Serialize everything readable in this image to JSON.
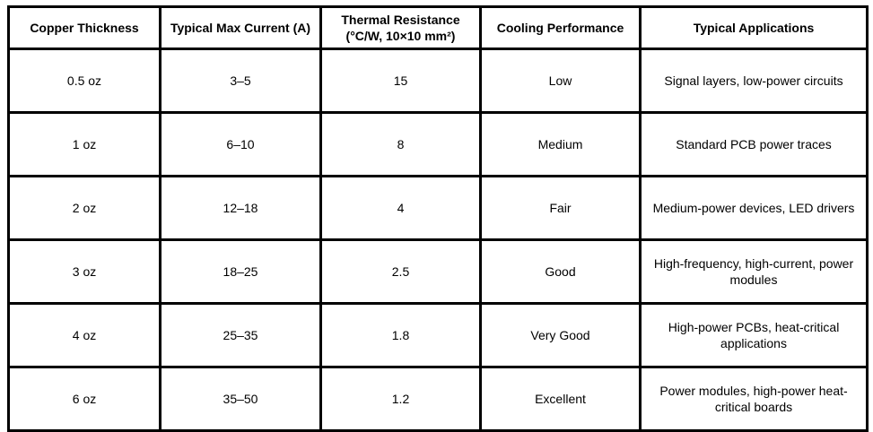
{
  "colors": {
    "background": "#ffffff",
    "border": "#000000",
    "text": "#000000"
  },
  "table": {
    "columns": [
      "Copper Thickness",
      "Typical Max Current (A)",
      "Thermal Resistance (°C/W, 10×10 mm²)",
      "Cooling Performance",
      "Typical Applications"
    ],
    "rows": [
      [
        "0.5 oz",
        "3–5",
        "15",
        "Low",
        "Signal layers, low-power circuits"
      ],
      [
        "1 oz",
        "6–10",
        "8",
        "Medium",
        "Standard PCB power traces"
      ],
      [
        "2 oz",
        "12–18",
        "4",
        "Fair",
        "Medium-power devices, LED drivers"
      ],
      [
        "3 oz",
        "18–25",
        "2.5",
        "Good",
        "High-frequency, high-current, power modules"
      ],
      [
        "4 oz",
        "25–35",
        "1.8",
        "Very Good",
        "High-power PCBs, heat-critical applications"
      ],
      [
        "6 oz",
        "35–50",
        "1.2",
        "Excellent",
        "Power modules, high-power heat-critical boards"
      ]
    ]
  },
  "chart_data": {
    "type": "table",
    "columns": [
      "Copper Thickness",
      "Typical Max Current (A)",
      "Thermal Resistance (°C/W, 10×10 mm²)",
      "Cooling Performance",
      "Typical Applications"
    ],
    "rows": [
      {
        "copper_thickness": "0.5 oz",
        "typical_max_current_a": "3–5",
        "thermal_resistance_c_per_w": 15,
        "cooling_performance": "Low",
        "typical_applications": "Signal layers, low-power circuits"
      },
      {
        "copper_thickness": "1 oz",
        "typical_max_current_a": "6–10",
        "thermal_resistance_c_per_w": 8,
        "cooling_performance": "Medium",
        "typical_applications": "Standard PCB power traces"
      },
      {
        "copper_thickness": "2 oz",
        "typical_max_current_a": "12–18",
        "thermal_resistance_c_per_w": 4,
        "cooling_performance": "Fair",
        "typical_applications": "Medium-power devices, LED drivers"
      },
      {
        "copper_thickness": "3 oz",
        "typical_max_current_a": "18–25",
        "thermal_resistance_c_per_w": 2.5,
        "cooling_performance": "Good",
        "typical_applications": "High-frequency, high-current, power modules"
      },
      {
        "copper_thickness": "4 oz",
        "typical_max_current_a": "25–35",
        "thermal_resistance_c_per_w": 1.8,
        "cooling_performance": "Very Good",
        "typical_applications": "High-power PCBs, heat-critical applications"
      },
      {
        "copper_thickness": "6 oz",
        "typical_max_current_a": "35–50",
        "thermal_resistance_c_per_w": 1.2,
        "cooling_performance": "Excellent",
        "typical_applications": "Power modules, high-power heat-critical boards"
      }
    ]
  }
}
